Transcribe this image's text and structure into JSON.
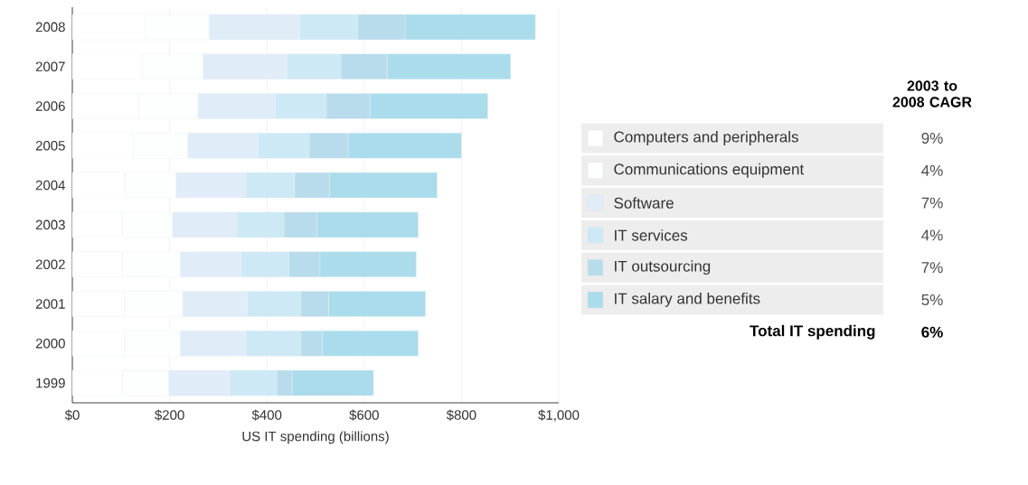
{
  "chart_data": {
    "type": "bar",
    "orientation": "horizontal",
    "stacked": true,
    "xlabel": "US IT spending (billions)",
    "legend_title": "2003 to 2008 CAGR",
    "legend": "right",
    "grid": "x",
    "categories": [
      "2008",
      "2007",
      "2006",
      "2005",
      "2004",
      "2003",
      "2002",
      "2001",
      "2000",
      "1999"
    ],
    "xlim": [
      0,
      1000
    ],
    "xticks": [
      {
        "value": 0,
        "label": "$0"
      },
      {
        "value": 200,
        "label": "$200"
      },
      {
        "value": 400,
        "label": "$400"
      },
      {
        "value": 600,
        "label": "$600"
      },
      {
        "value": 800,
        "label": "$800"
      },
      {
        "value": 1000,
        "label": "$1,000"
      }
    ],
    "series": [
      {
        "name": "Computers and peripherals",
        "color": "#ffffff",
        "values": [
          150,
          143,
          136,
          125,
          108,
          102,
          102,
          107,
          107,
          102
        ]
      },
      {
        "name": "Communications equipment",
        "color": "#fdfefe",
        "values": [
          131,
          126,
          122,
          112,
          105,
          104,
          120,
          120,
          115,
          96
        ]
      },
      {
        "name": "Software",
        "color": "#e0edf8",
        "values": [
          186,
          172,
          159,
          145,
          144,
          132,
          125,
          133,
          135,
          125
        ]
      },
      {
        "name": "IT services",
        "color": "#cde9f6",
        "values": [
          119,
          111,
          105,
          105,
          100,
          97,
          98,
          109,
          112,
          97
        ]
      },
      {
        "name": "IT outsourcing",
        "color": "#b8dcec",
        "values": [
          98,
          96,
          90,
          80,
          72,
          68,
          64,
          58,
          45,
          32
        ]
      },
      {
        "name": "IT salary and benefits",
        "color": "#aadcec",
        "values": [
          268,
          253,
          242,
          233,
          221,
          208,
          198,
          199,
          197,
          167
        ]
      }
    ],
    "annotations": [
      "9%",
      "4%",
      "7%",
      "4%",
      "7%",
      "5%",
      "Total IT spending",
      "6%"
    ]
  }
}
